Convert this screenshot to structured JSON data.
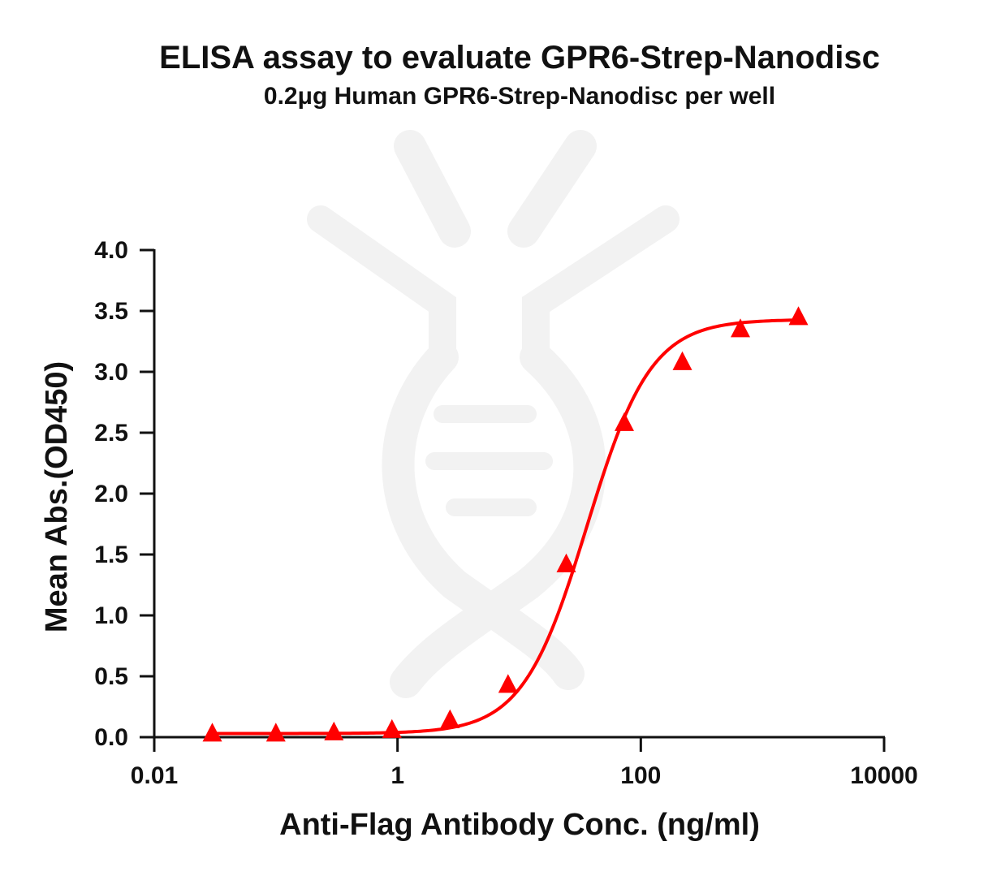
{
  "chart_data": {
    "type": "scatter",
    "title": "ELISA assay to evaluate GPR6-Strep-Nanodisc",
    "subtitle": "0.2μg Human GPR6-Strep-Nanodisc per well",
    "xlabel": "Anti-Flag Antibody Conc. (ng/ml)",
    "ylabel": "Mean Abs.(OD450)",
    "x_scale": "log",
    "xlim": [
      0.01,
      10000
    ],
    "ylim": [
      0.0,
      4.0
    ],
    "x_ticks": [
      0.01,
      1,
      100,
      10000
    ],
    "x_tick_labels": [
      "0.01",
      "1",
      "100",
      "10000"
    ],
    "y_ticks": [
      0.0,
      0.5,
      1.0,
      1.5,
      2.0,
      2.5,
      3.0,
      3.5,
      4.0
    ],
    "y_tick_labels": [
      "0.0",
      "0.5",
      "1.0",
      "1.5",
      "2.0",
      "2.5",
      "3.0",
      "3.5",
      "4.0"
    ],
    "grid": false,
    "series": [
      {
        "marker": "triangle",
        "color": "#ff0000",
        "x": [
          0.03,
          0.1,
          0.3,
          0.9,
          2.7,
          8.1,
          24.4,
          73.2,
          219.5,
          658.4,
          1975.3
        ],
        "y": [
          0.03,
          0.03,
          0.04,
          0.06,
          0.14,
          0.43,
          1.42,
          2.58,
          3.08,
          3.35,
          3.45
        ]
      }
    ],
    "fit_curve": {
      "color": "#ff0000",
      "bottom": 0.03,
      "top": 3.43,
      "ec50": 36,
      "hill": 1.65
    }
  }
}
